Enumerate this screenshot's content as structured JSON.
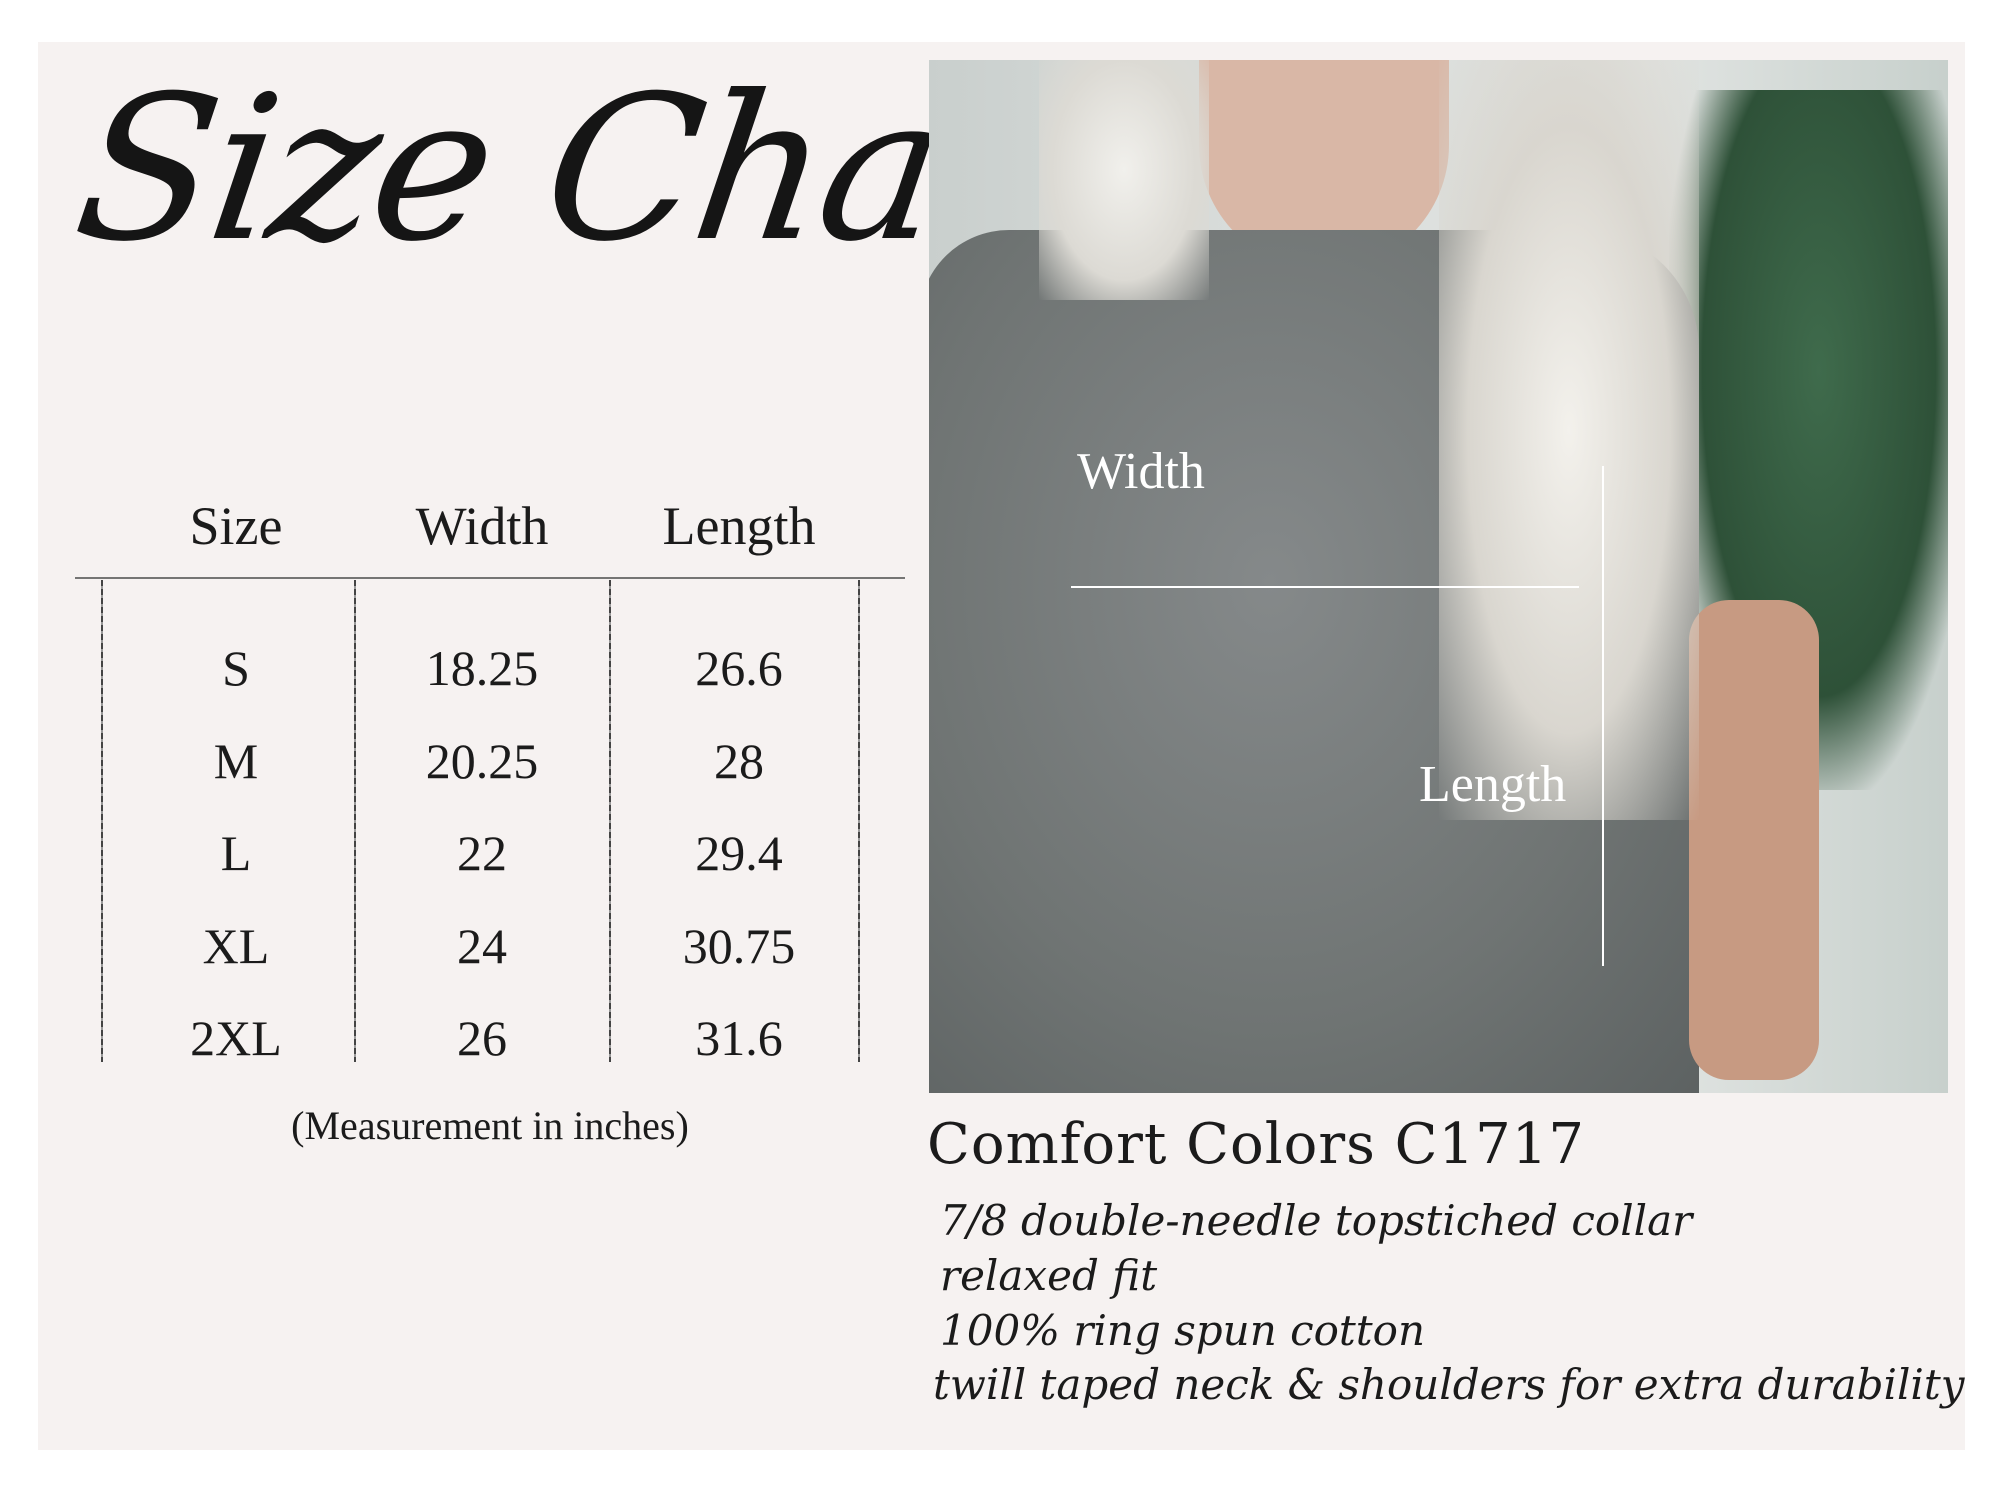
{
  "title": "Size Chart",
  "table": {
    "headers": [
      "Size",
      "Width",
      "Length"
    ],
    "rows": [
      [
        "S",
        "18.25",
        "26.6"
      ],
      [
        "M",
        "20.25",
        "28"
      ],
      [
        "L",
        "22",
        "29.4"
      ],
      [
        "XL",
        "24",
        "30.75"
      ],
      [
        "2XL",
        "26",
        "31.6"
      ]
    ],
    "caption": "(Measurement in inches)"
  },
  "photo": {
    "width_label": "Width",
    "length_label": "Length"
  },
  "product": {
    "name": "Comfort Colors C1717",
    "features": [
      "7/8 double-needle topstiched collar",
      "relaxed fit",
      "100% ring spun cotton",
      "twill taped neck & shoulders for extra durability"
    ]
  }
}
